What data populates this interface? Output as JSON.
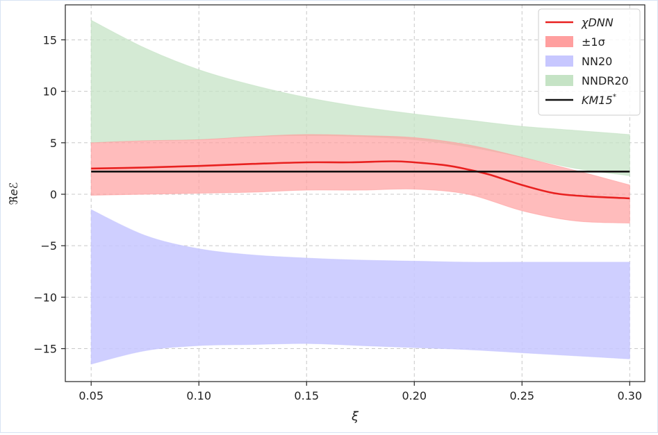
{
  "chart_data": {
    "type": "area",
    "title": "",
    "xlabel": "ξ",
    "ylabel": "ℜeℰ",
    "xlim": [
      0.038,
      0.307
    ],
    "ylim": [
      -18.2,
      18.4
    ],
    "xticks": [
      0.05,
      0.1,
      0.15,
      0.2,
      0.25,
      0.3
    ],
    "xtick_labels": [
      "0.05",
      "0.10",
      "0.15",
      "0.20",
      "0.25",
      "0.30"
    ],
    "yticks": [
      15,
      10,
      5,
      0,
      -5,
      -10,
      -15
    ],
    "ytick_labels": [
      "15",
      "10",
      "5",
      "0",
      "−5",
      "−10",
      "−15"
    ],
    "grid": true,
    "legend_position": "top-right",
    "legend": [
      {
        "label": "χDNN",
        "kind": "line",
        "color": "#e8201f"
      },
      {
        "label": "±1σ",
        "kind": "band",
        "color": "#ff9f9f"
      },
      {
        "label": "NN20",
        "kind": "band",
        "color": "#c7c7ff"
      },
      {
        "label": "NNDR20",
        "kind": "band",
        "color": "#c5e3c5"
      },
      {
        "label": "KM15",
        "sup": "*",
        "kind": "line",
        "color": "#111111"
      }
    ],
    "series": [
      {
        "name": "NNDR20",
        "kind": "band",
        "color": "#c5e3c5",
        "opacity": 0.75,
        "x": [
          0.05,
          0.075,
          0.1,
          0.125,
          0.15,
          0.175,
          0.2,
          0.225,
          0.25,
          0.275,
          0.3
        ],
        "upper": [
          16.9,
          14.2,
          12.1,
          10.6,
          9.4,
          8.5,
          7.8,
          7.2,
          6.6,
          6.2,
          5.8
        ],
        "lower": [
          5.0,
          5.2,
          5.3,
          5.6,
          5.7,
          5.6,
          5.3,
          4.6,
          3.6,
          2.5,
          1.8
        ]
      },
      {
        "name": "±1σ",
        "kind": "band",
        "color": "#ff9f9f",
        "opacity": 0.7,
        "x": [
          0.05,
          0.075,
          0.1,
          0.125,
          0.15,
          0.175,
          0.2,
          0.225,
          0.25,
          0.275,
          0.3
        ],
        "upper": [
          5.0,
          5.2,
          5.3,
          5.6,
          5.8,
          5.7,
          5.5,
          4.8,
          3.6,
          2.3,
          0.9
        ],
        "lower": [
          -0.1,
          0.0,
          0.1,
          0.2,
          0.4,
          0.4,
          0.5,
          0.0,
          -1.6,
          -2.6,
          -2.8
        ]
      },
      {
        "name": "NN20",
        "kind": "band",
        "color": "#c7c7ff",
        "opacity": 0.85,
        "x": [
          0.05,
          0.075,
          0.1,
          0.125,
          0.15,
          0.175,
          0.2,
          0.225,
          0.25,
          0.275,
          0.3
        ],
        "upper": [
          -1.5,
          -4.0,
          -5.3,
          -5.9,
          -6.2,
          -6.4,
          -6.5,
          -6.6,
          -6.6,
          -6.6,
          -6.6
        ],
        "lower": [
          -16.5,
          -15.2,
          -14.7,
          -14.6,
          -14.5,
          -14.7,
          -14.9,
          -15.1,
          -15.4,
          -15.7,
          -16.0
        ]
      },
      {
        "name": "χDNN",
        "kind": "line",
        "color": "#e8201f",
        "x": [
          0.05,
          0.075,
          0.1,
          0.125,
          0.15,
          0.17,
          0.19,
          0.2,
          0.215,
          0.225,
          0.235,
          0.25,
          0.265,
          0.28,
          0.3
        ],
        "y": [
          2.5,
          2.6,
          2.75,
          2.95,
          3.1,
          3.1,
          3.2,
          3.1,
          2.8,
          2.4,
          1.9,
          0.9,
          0.1,
          -0.2,
          -0.4
        ]
      },
      {
        "name": "KM15*",
        "kind": "line",
        "color": "#111111",
        "x": [
          0.05,
          0.3
        ],
        "y": [
          2.2,
          2.2
        ]
      }
    ]
  }
}
